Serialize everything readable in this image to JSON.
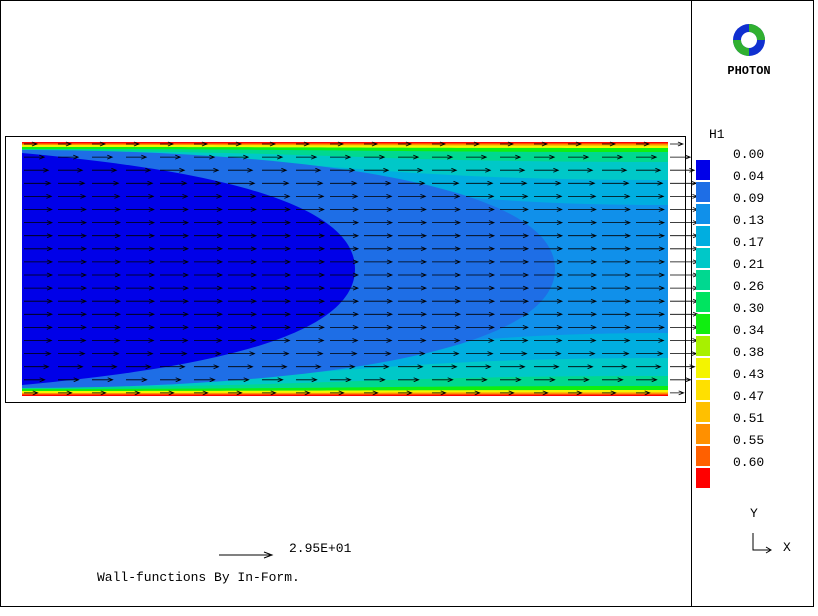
{
  "logo": {
    "text": "PHOTON"
  },
  "legend": {
    "title": "H1",
    "levels": [
      {
        "label": "0.00",
        "color": "#0000e8"
      },
      {
        "label": "0.04",
        "color": "#1e6ee6"
      },
      {
        "label": "0.09",
        "color": "#1090ea"
      },
      {
        "label": "0.13",
        "color": "#00aee0"
      },
      {
        "label": "0.17",
        "color": "#00c8c8"
      },
      {
        "label": "0.21",
        "color": "#00d890"
      },
      {
        "label": "0.26",
        "color": "#00e460"
      },
      {
        "label": "0.30",
        "color": "#10ee10"
      },
      {
        "label": "0.34",
        "color": "#a8f000"
      },
      {
        "label": "0.38",
        "color": "#f4f400"
      },
      {
        "label": "0.43",
        "color": "#ffe000"
      },
      {
        "label": "0.47",
        "color": "#ffc000"
      },
      {
        "label": "0.51",
        "color": "#ff9000"
      },
      {
        "label": "0.55",
        "color": "#ff6000"
      },
      {
        "label": "0.60",
        "color": "#ff0000"
      }
    ]
  },
  "reference_vector": {
    "label": "2.95E+01"
  },
  "caption": "Wall-functions By In-Form.",
  "axes": {
    "y": "Y",
    "x": "X"
  }
}
